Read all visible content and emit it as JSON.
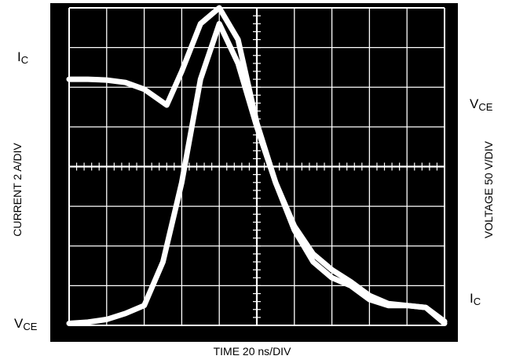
{
  "chart_data": {
    "type": "line",
    "title": "",
    "xlabel": "TIME 20 ns/DIV",
    "ylabel_left": "CURRENT 2 A/DIV",
    "ylabel_right": "VOLTAGE 50 V/DIV",
    "xlim": [
      0,
      10
    ],
    "ylim": [
      0,
      8
    ],
    "grid": true,
    "divisions": {
      "x": 10,
      "y": 8
    },
    "colors": {
      "background": "#000000",
      "grid": "#ffffff",
      "trace": "#ffffff"
    },
    "series": [
      {
        "label_left": "I",
        "label_left_sub": "C",
        "label_right": "V",
        "label_right_sub": "CE",
        "x": [
          0,
          0.5,
          1.0,
          1.5,
          2.0,
          2.6,
          3.0,
          3.5,
          4.0,
          4.5,
          5.0,
          5.5,
          6.0,
          6.5,
          7.0,
          7.5,
          8.0,
          8.5,
          9.0,
          9.5,
          10.0
        ],
        "y": [
          6.2,
          6.2,
          6.18,
          6.12,
          5.95,
          5.55,
          6.4,
          7.6,
          8.0,
          7.2,
          5.1,
          3.6,
          2.4,
          1.6,
          1.2,
          1.0,
          0.65,
          0.5,
          0.5,
          0.45,
          0.1
        ]
      },
      {
        "label_left": "V",
        "label_left_sub": "CE",
        "label_right": "I",
        "label_right_sub": "C",
        "x": [
          0,
          0.5,
          1.0,
          1.5,
          2.0,
          2.5,
          3.0,
          3.5,
          4.0,
          4.5,
          5.0,
          5.5,
          6.0,
          6.5,
          7.0,
          7.5,
          8.0,
          8.5,
          9.0,
          9.5,
          10.0
        ],
        "y": [
          0.05,
          0.08,
          0.15,
          0.3,
          0.5,
          1.6,
          3.6,
          6.2,
          7.6,
          6.6,
          5.0,
          3.6,
          2.5,
          1.8,
          1.4,
          1.1,
          0.75,
          0.55,
          0.5,
          0.45,
          0.05
        ]
      }
    ]
  }
}
